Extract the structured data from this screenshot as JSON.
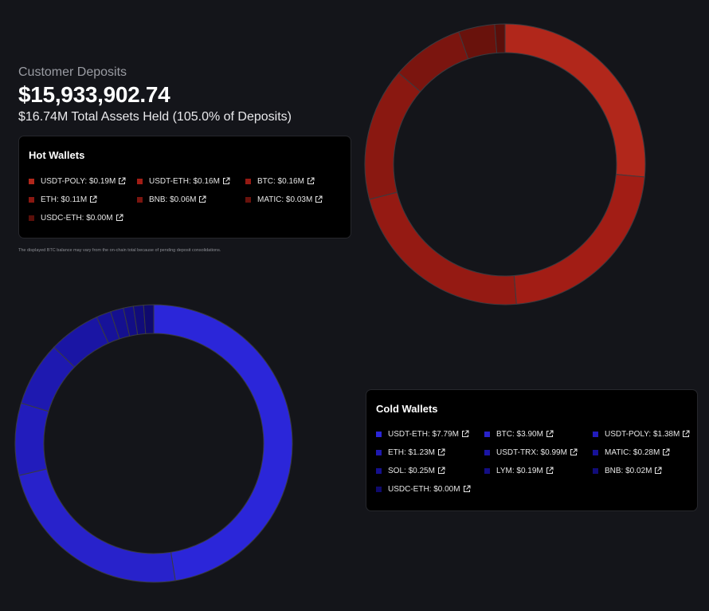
{
  "header": {
    "label": "Customer Deposits",
    "amount": "$15,933,902.74",
    "assets_text": "$16.74M Total Assets Held (105.0% of Deposits)"
  },
  "note": "The displayed BTC balance may vary from the on-chain total because of pending deposit consolidations.",
  "colors": {
    "hot_accent": "#b1271b",
    "cold_accent": "#2b26d9",
    "background": "#14151a",
    "card": "#000000"
  },
  "icons": {
    "external_link": "external-link-icon"
  },
  "chart_data": [
    {
      "type": "pie",
      "donut": true,
      "title": "Hot Wallets",
      "categories": [
        "USDT-POLY",
        "USDT-ETH",
        "BTC",
        "ETH",
        "BNB",
        "MATIC",
        "USDC-ETH"
      ],
      "values": [
        0.19,
        0.16,
        0.16,
        0.11,
        0.06,
        0.03,
        0.0
      ],
      "labels": [
        "USDT-POLY: $0.19M",
        "USDT-ETH: $0.16M",
        "BTC: $0.16M",
        "ETH: $0.11M",
        "BNB: $0.06M",
        "MATIC: $0.03M",
        "USDC-ETH: $0.00M"
      ],
      "colors": [
        "#b1271b",
        "#a21d15",
        "#951a13",
        "#8a1811",
        "#7b150f",
        "#69120c",
        "#5a0f0a"
      ]
    },
    {
      "type": "pie",
      "donut": true,
      "title": "Cold Wallets",
      "categories": [
        "USDT-ETH",
        "BTC",
        "USDT-POLY",
        "ETH",
        "USDT-TRX",
        "MATIC",
        "SOL",
        "LYM",
        "BNB",
        "USDC-ETH"
      ],
      "values": [
        7.79,
        3.9,
        1.38,
        1.23,
        0.99,
        0.28,
        0.25,
        0.19,
        0.02,
        0.0
      ],
      "labels": [
        "USDT-ETH: $7.79M",
        "BTC: $3.90M",
        "USDT-POLY: $1.38M",
        "ETH: $1.23M",
        "USDT-TRX: $0.99M",
        "MATIC: $0.28M",
        "SOL: $0.25M",
        "LYM: $0.19M",
        "BNB: $0.02M",
        "USDC-ETH: $0.00M"
      ],
      "colors": [
        "#2b26d9",
        "#2822cb",
        "#221cbc",
        "#1e19b0",
        "#1a15a4",
        "#171299",
        "#15108f",
        "#130e85",
        "#110c7a",
        "#0f0a6e"
      ]
    }
  ]
}
